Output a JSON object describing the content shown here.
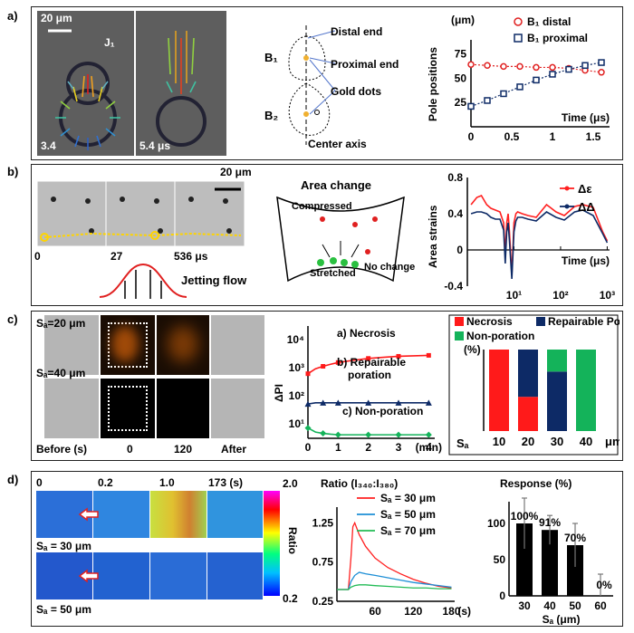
{
  "panels": {
    "a": {
      "label": "a)",
      "scale_bar": "20 μm",
      "j1": "J₁",
      "time_left": "3.4",
      "time_right": "5.4 μs",
      "diagram": {
        "distal": "Distal end",
        "proximal": "Proximal end",
        "gold": "Gold dots",
        "axis": "Center axis",
        "b1": "B₁",
        "b2": "B₂"
      }
    },
    "b": {
      "label": "b)",
      "scale_bar": "20 μm",
      "times": [
        "0",
        "27",
        "536 μs"
      ],
      "jetting": "Jetting flow",
      "area_title": "Area change",
      "compressed": "Compressed",
      "stretched": "Stretched",
      "no_change": "No change"
    },
    "c": {
      "label": "c)",
      "sd20": "Sₐ=20 μm",
      "sd40": "Sₐ=40 μm",
      "row_labels": [
        "Before (s)",
        "0",
        "120",
        "After"
      ]
    },
    "d": {
      "label": "d)",
      "times": [
        "0",
        "0.2",
        "1.0",
        "173 (s)"
      ],
      "sd30": "Sₐ = 30 μm",
      "sd50": "Sₐ = 50 μm",
      "colorbar_max": "2.0",
      "colorbar_min": "0.2",
      "colorbar_label": "Ratio"
    }
  },
  "chart_data": [
    {
      "id": "pole-positions",
      "type": "line",
      "title": "",
      "ylabel": "Pole positions",
      "yunit": "(μm)",
      "xlabel": "Time  (μs)",
      "xlim": [
        0,
        1.7
      ],
      "ylim": [
        0,
        80
      ],
      "xticks": [
        "0",
        "0.5",
        "1",
        "1.5"
      ],
      "yticks": [
        "25",
        "50",
        "75"
      ],
      "legend": "top-right",
      "series": [
        {
          "name": "B₁ distal",
          "x": [
            0,
            0.2,
            0.4,
            0.6,
            0.8,
            1.0,
            1.2,
            1.4,
            1.6
          ],
          "y": [
            64,
            63,
            62,
            62,
            61,
            61,
            60,
            58,
            56
          ]
        },
        {
          "name": "B₁ proximal",
          "x": [
            0,
            0.2,
            0.4,
            0.6,
            0.8,
            1.0,
            1.2,
            1.4,
            1.6
          ],
          "y": [
            21,
            27,
            34,
            41,
            48,
            54,
            59,
            63,
            66
          ]
        }
      ]
    },
    {
      "id": "area-strains",
      "type": "line",
      "ylabel": "Area strains",
      "xlabel": "Time (μs)",
      "xscale": "log",
      "ylim": [
        -0.4,
        0.8
      ],
      "yticks": [
        "-0.4",
        "0",
        "0.4",
        "0.8"
      ],
      "xticks": [
        "10¹",
        "10²",
        "10³"
      ],
      "legend": "top-right",
      "series": [
        {
          "name": "Δε",
          "x": [
            1.2,
            1.6,
            2,
            2.6,
            3.2,
            4,
            5,
            6,
            6.5,
            7,
            7.5,
            8,
            9,
            10,
            11,
            12,
            15,
            20,
            30,
            50,
            80,
            120,
            200,
            300,
            500,
            800,
            1000
          ],
          "y": [
            0.5,
            0.58,
            0.6,
            0.5,
            0.46,
            0.44,
            0.42,
            0.3,
            -0.05,
            0.3,
            0.4,
            0.2,
            -0.28,
            0.3,
            0.4,
            0.42,
            0.4,
            0.38,
            0.36,
            0.5,
            0.42,
            0.38,
            0.48,
            0.5,
            0.47,
            0.2,
            0.1
          ]
        },
        {
          "name": "ΔΔ",
          "x": [
            1.2,
            1.6,
            2,
            2.6,
            3.2,
            4,
            5,
            6,
            6.5,
            7,
            7.5,
            8,
            9,
            10,
            11,
            12,
            15,
            20,
            30,
            50,
            80,
            120,
            200,
            300,
            500,
            800,
            1000
          ],
          "y": [
            0.4,
            0.42,
            0.42,
            0.4,
            0.36,
            0.34,
            0.34,
            0.22,
            -0.15,
            0.2,
            0.3,
            0.1,
            -0.32,
            0.2,
            0.32,
            0.36,
            0.36,
            0.34,
            0.32,
            0.42,
            0.36,
            0.33,
            0.42,
            0.44,
            0.38,
            0.18,
            0.08
          ]
        }
      ]
    },
    {
      "id": "delta-pi",
      "type": "line",
      "ylabel": "ΔPI",
      "xlabel": "(min)",
      "yscale": "log",
      "xlim": [
        0,
        4.2
      ],
      "ylim": [
        3,
        30000
      ],
      "xticks": [
        "0",
        "1",
        "2",
        "3",
        "4"
      ],
      "yticks": [
        "10¹",
        "10²",
        "10³",
        "10⁴"
      ],
      "series": [
        {
          "name": "a) Necrosis",
          "x": [
            0,
            0.25,
            0.5,
            0.75,
            1,
            1.5,
            2,
            2.5,
            3,
            3.5,
            4
          ],
          "y": [
            600,
            900,
            1100,
            1300,
            1500,
            1800,
            2100,
            2300,
            2500,
            2600,
            2700
          ]
        },
        {
          "name": "b) Repairable poration",
          "x": [
            0,
            0.25,
            0.5,
            0.75,
            1,
            1.5,
            2,
            2.5,
            3,
            3.5,
            4
          ],
          "y": [
            50,
            55,
            55,
            55,
            55,
            55,
            55,
            55,
            55,
            55,
            55
          ]
        },
        {
          "name": "c) Non-poration",
          "x": [
            0,
            0.25,
            0.5,
            0.75,
            1,
            1.5,
            2,
            2.5,
            3,
            3.5,
            4
          ],
          "y": [
            7,
            5,
            4.5,
            4.2,
            4,
            4,
            4,
            4,
            4,
            4,
            4
          ]
        }
      ]
    },
    {
      "id": "poration-fraction",
      "type": "bar",
      "ylabel": "(%)",
      "xlabel": "Sₐ",
      "xunit": "μm",
      "categories": [
        "10",
        "20",
        "30",
        "40"
      ],
      "legend": "top",
      "series": [
        {
          "name": "Necrosis",
          "color": "#ff1a1a",
          "values": [
            100,
            42,
            0,
            0
          ]
        },
        {
          "name": "Repairable Poration",
          "color": "#0d2a66",
          "values": [
            0,
            58,
            73,
            0
          ]
        },
        {
          "name": "Non-poration",
          "color": "#14b35a",
          "values": [
            0,
            0,
            27,
            100
          ]
        }
      ]
    },
    {
      "id": "ratio-traces",
      "type": "line",
      "title": "Ratio (I₃₄₀:I₃₈₀)",
      "xlabel": "(s)",
      "xlim": [
        0,
        185
      ],
      "ylim": [
        0.25,
        1.45
      ],
      "xticks": [
        "60",
        "120",
        "180"
      ],
      "yticks": [
        "0.25",
        "0.75",
        "1.25"
      ],
      "legend": "top-right",
      "series": [
        {
          "name": "Sₐ = 30 μm",
          "color": "#ff2020",
          "x": [
            0,
            18,
            22,
            25,
            28,
            35,
            45,
            60,
            80,
            100,
            120,
            140,
            160,
            180
          ],
          "y": [
            0.4,
            0.4,
            0.8,
            1.2,
            1.25,
            1.1,
            0.95,
            0.8,
            0.68,
            0.6,
            0.53,
            0.48,
            0.44,
            0.42
          ]
        },
        {
          "name": "Sₐ = 50 μm",
          "color": "#1e8fd6",
          "x": [
            0,
            18,
            22,
            28,
            35,
            45,
            60,
            80,
            100,
            120,
            140,
            160,
            180
          ],
          "y": [
            0.4,
            0.4,
            0.5,
            0.58,
            0.62,
            0.6,
            0.58,
            0.55,
            0.52,
            0.49,
            0.47,
            0.45,
            0.43
          ]
        },
        {
          "name": "Sₐ = 70 μm",
          "color": "#22bb55",
          "x": [
            0,
            18,
            22,
            28,
            35,
            45,
            60,
            80,
            100,
            120,
            140,
            160,
            180
          ],
          "y": [
            0.4,
            0.4,
            0.43,
            0.45,
            0.46,
            0.46,
            0.45,
            0.44,
            0.43,
            0.42,
            0.42,
            0.41,
            0.41
          ]
        }
      ]
    },
    {
      "id": "response",
      "type": "bar",
      "title": "Response (%)",
      "xlabel": "Sₐ (μm)",
      "categories": [
        "30",
        "40",
        "50",
        "60"
      ],
      "ylim": [
        0,
        130
      ],
      "yticks": [
        "0",
        "50",
        "100"
      ],
      "values": [
        100,
        91,
        70,
        0
      ],
      "errors": [
        35,
        20,
        30,
        30
      ],
      "data_labels": [
        "100%",
        "91%",
        "70%",
        "0%"
      ]
    }
  ]
}
